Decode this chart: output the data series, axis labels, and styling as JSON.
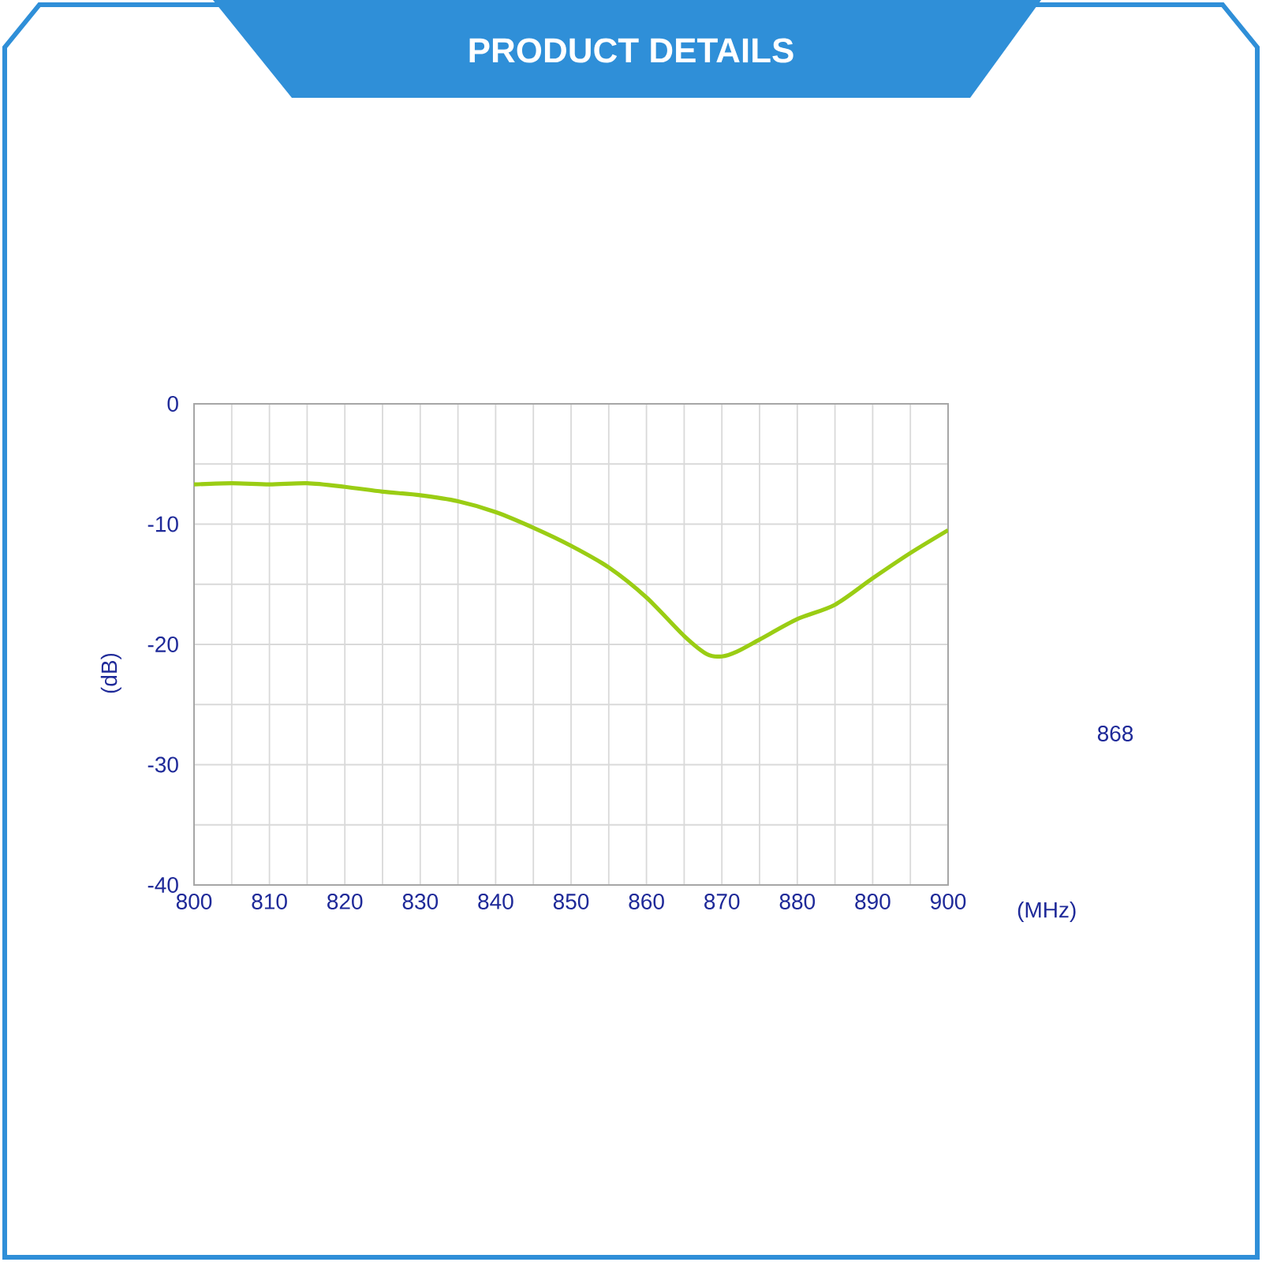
{
  "chart_data": {
    "type": "line",
    "title": "PRODUCT DETAILS",
    "xlabel": "(MHz)",
    "ylabel": "(dB)",
    "annotations": [
      "868"
    ],
    "x": [
      800,
      805,
      810,
      815,
      820,
      825,
      830,
      835,
      840,
      845,
      850,
      855,
      860,
      865,
      868,
      870,
      872,
      875,
      880,
      885,
      890,
      895,
      900
    ],
    "series": [
      {
        "color": "#9acd14",
        "values": [
          -6.7,
          -6.6,
          -6.7,
          -6.6,
          -6.9,
          -7.3,
          -7.6,
          -8.1,
          -9.0,
          -10.3,
          -11.8,
          -13.6,
          -16.1,
          -19.3,
          -20.8,
          -21.0,
          -20.6,
          -19.6,
          -17.9,
          -16.7,
          -14.5,
          -12.4,
          -10.5
        ]
      }
    ],
    "xlim": [
      800,
      900
    ],
    "ylim": [
      -40,
      0
    ],
    "xticks": [
      800,
      {
        "value": 805,
        "label": null
      },
      810,
      {
        "value": 815,
        "label": null
      },
      820,
      {
        "value": 825,
        "label": null
      },
      830,
      {
        "value": 835,
        "label": null
      },
      840,
      {
        "value": 845,
        "label": null
      },
      850,
      {
        "value": 855,
        "label": null
      },
      860,
      {
        "value": 865,
        "label": null
      },
      870,
      {
        "value": 875,
        "label": null
      },
      880,
      {
        "value": 885,
        "label": null
      },
      890,
      {
        "value": 895,
        "label": null
      },
      900
    ],
    "yticks": [
      -40,
      {
        "value": -35,
        "label": null
      },
      -30,
      {
        "value": -25,
        "label": null
      },
      -20,
      {
        "value": -15,
        "label": null
      },
      -10,
      {
        "value": -5,
        "label": null
      },
      0
    ],
    "grid": true,
    "marker": "none",
    "line_style": "solid"
  }
}
